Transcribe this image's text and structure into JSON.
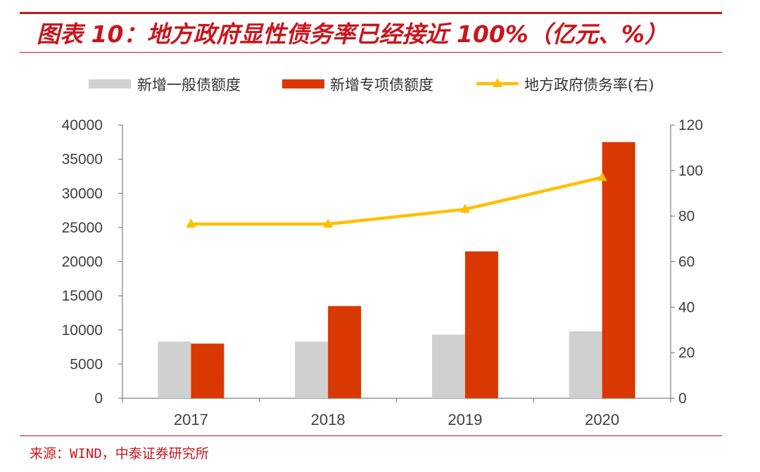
{
  "header": {
    "title": "图表 10：地方政府显性债务率已经接近 100%（亿元、%）"
  },
  "footer": {
    "source": "来源：WIND，中泰证券研究所"
  },
  "colors": {
    "accent": "#c8161d",
    "general_bond": "#d0d0d0",
    "special_bond": "#d93800",
    "debt_ratio": "#ffbf00",
    "axis": "#7f7f7f"
  },
  "chart_data": {
    "type": "bar",
    "title": "图表 10：地方政府显性债务率已经接近 100%（亿元、%）",
    "categories": [
      "2017",
      "2018",
      "2019",
      "2020"
    ],
    "series": [
      {
        "name": "新增一般债额度",
        "type": "bar",
        "axis": "left",
        "values": [
          8300,
          8300,
          9300,
          9800
        ]
      },
      {
        "name": "新增专项债额度",
        "type": "bar",
        "axis": "left",
        "values": [
          8000,
          13500,
          21500,
          37500
        ]
      },
      {
        "name": "地方政府债务率(右)",
        "type": "line",
        "axis": "right",
        "marker": "triangle",
        "values": [
          76.5,
          76.5,
          83,
          97
        ]
      }
    ],
    "left_axis": {
      "min": 0,
      "max": 40000,
      "step": 5000,
      "ticks": [
        "0",
        "5000",
        "10000",
        "15000",
        "20000",
        "25000",
        "30000",
        "35000",
        "40000"
      ]
    },
    "right_axis": {
      "min": 0,
      "max": 120,
      "step": 20,
      "ticks": [
        "0",
        "20",
        "40",
        "60",
        "80",
        "100",
        "120"
      ]
    },
    "legend": {
      "placement": "top",
      "items": [
        "新增一般债额度",
        "新增专项债额度",
        "地方政府债务率(右)"
      ]
    },
    "grid": false,
    "xlabel": "",
    "ylabel": ""
  }
}
